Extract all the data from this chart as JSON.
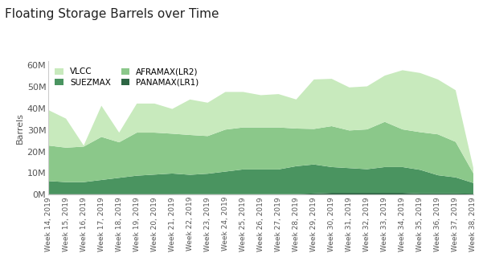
{
  "title": "Floating Storage Barrels over Time",
  "ylabel": "Barrels",
  "weeks": [
    "Week 14, 2019",
    "Week 15, 2019",
    "Week 16, 2019",
    "Week 17, 2019",
    "Week 18, 2019",
    "Week 19, 2019",
    "Week 20, 2019",
    "Week 21, 2019",
    "Week 22, 2019",
    "Week 23, 2019",
    "Week 24, 2019",
    "Week 25, 2019",
    "Week 26, 2019",
    "Week 27, 2019",
    "Week 28, 2019",
    "Week 29, 2019",
    "Week 30, 2019",
    "Week 31, 2019",
    "Week 32, 2019",
    "Week 33, 2019",
    "Week 34, 2019",
    "Week 35, 2019",
    "Week 36, 2019",
    "Week 37, 2019",
    "Week 38, 2019"
  ],
  "series": {
    "PANAMAX(LR1)": [
      0.3,
      0.3,
      0.3,
      0.3,
      0.3,
      0.3,
      0.3,
      0.3,
      0.2,
      0.2,
      0.2,
      0.2,
      0.2,
      0.2,
      0.2,
      0.5,
      0.8,
      0.8,
      0.8,
      0.8,
      0.8,
      0.5,
      0.5,
      0.5,
      0.4
    ],
    "SUEZMAX": [
      6.0,
      5.5,
      5.5,
      6.5,
      7.5,
      8.5,
      9.0,
      9.5,
      9.0,
      9.5,
      10.5,
      11.5,
      11.5,
      11.5,
      13.0,
      13.5,
      12.0,
      11.5,
      11.0,
      12.0,
      12.0,
      11.0,
      8.5,
      7.5,
      5.0
    ],
    "AFRAMAX(LR2)": [
      16.5,
      16.0,
      16.5,
      20.0,
      16.5,
      20.0,
      19.5,
      18.5,
      18.5,
      17.5,
      19.5,
      19.5,
      19.5,
      19.5,
      17.5,
      16.5,
      19.0,
      17.5,
      18.5,
      21.0,
      17.5,
      17.5,
      19.0,
      16.5,
      4.5
    ],
    "VLCC": [
      16.5,
      13.5,
      0.5,
      14.5,
      4.5,
      13.5,
      13.5,
      11.5,
      16.5,
      15.5,
      17.5,
      16.5,
      15.0,
      15.5,
      13.5,
      23.0,
      22.0,
      20.0,
      20.0,
      21.5,
      27.5,
      27.5,
      25.5,
      24.0,
      2.5
    ]
  },
  "colors": {
    "VLCC": "#c8eabd",
    "AFRAMAX(LR2)": "#8bc88a",
    "SUEZMAX": "#4a9460",
    "PANAMAX(LR1)": "#2d6644"
  },
  "ylim": [
    0,
    62
  ],
  "yticks": [
    0,
    10,
    20,
    30,
    40,
    50,
    60
  ],
  "ytick_labels": [
    "0M",
    "10M",
    "20M",
    "30M",
    "40M",
    "50M",
    "60M"
  ],
  "background_color": "#ffffff",
  "legend_order": [
    "VLCC",
    "SUEZMAX",
    "AFRAMAX(LR2)",
    "PANAMAX(LR1)"
  ]
}
